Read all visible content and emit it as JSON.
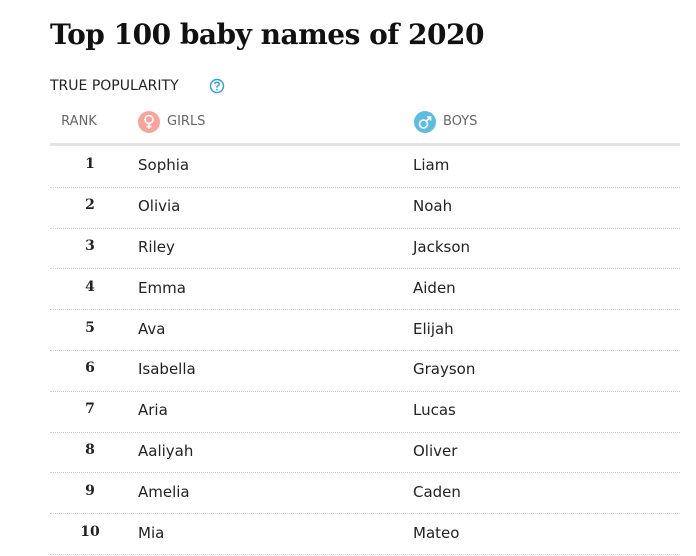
{
  "header": {
    "title": "Top 100 baby names of 2020",
    "subtitle": "TRUE POPULARITY"
  },
  "table": {
    "columns": [
      "RANK",
      "GIRLS",
      "BOYS"
    ],
    "rows": [
      [
        "1",
        "Sophia",
        "Liam"
      ],
      [
        "2",
        "Olivia",
        "Noah"
      ],
      [
        "3",
        "Riley",
        "Jackson"
      ],
      [
        "4",
        "Emma",
        "Aiden"
      ],
      [
        "5",
        "Ava",
        "Elijah"
      ],
      [
        "6",
        "Isabella",
        "Grayson"
      ],
      [
        "7",
        "Aria",
        "Lucas"
      ],
      [
        "8",
        "Aaliyah",
        "Oliver"
      ],
      [
        "9",
        "Amelia",
        "Caden"
      ],
      [
        "10",
        "Mia",
        "Mateo"
      ]
    ]
  }
}
